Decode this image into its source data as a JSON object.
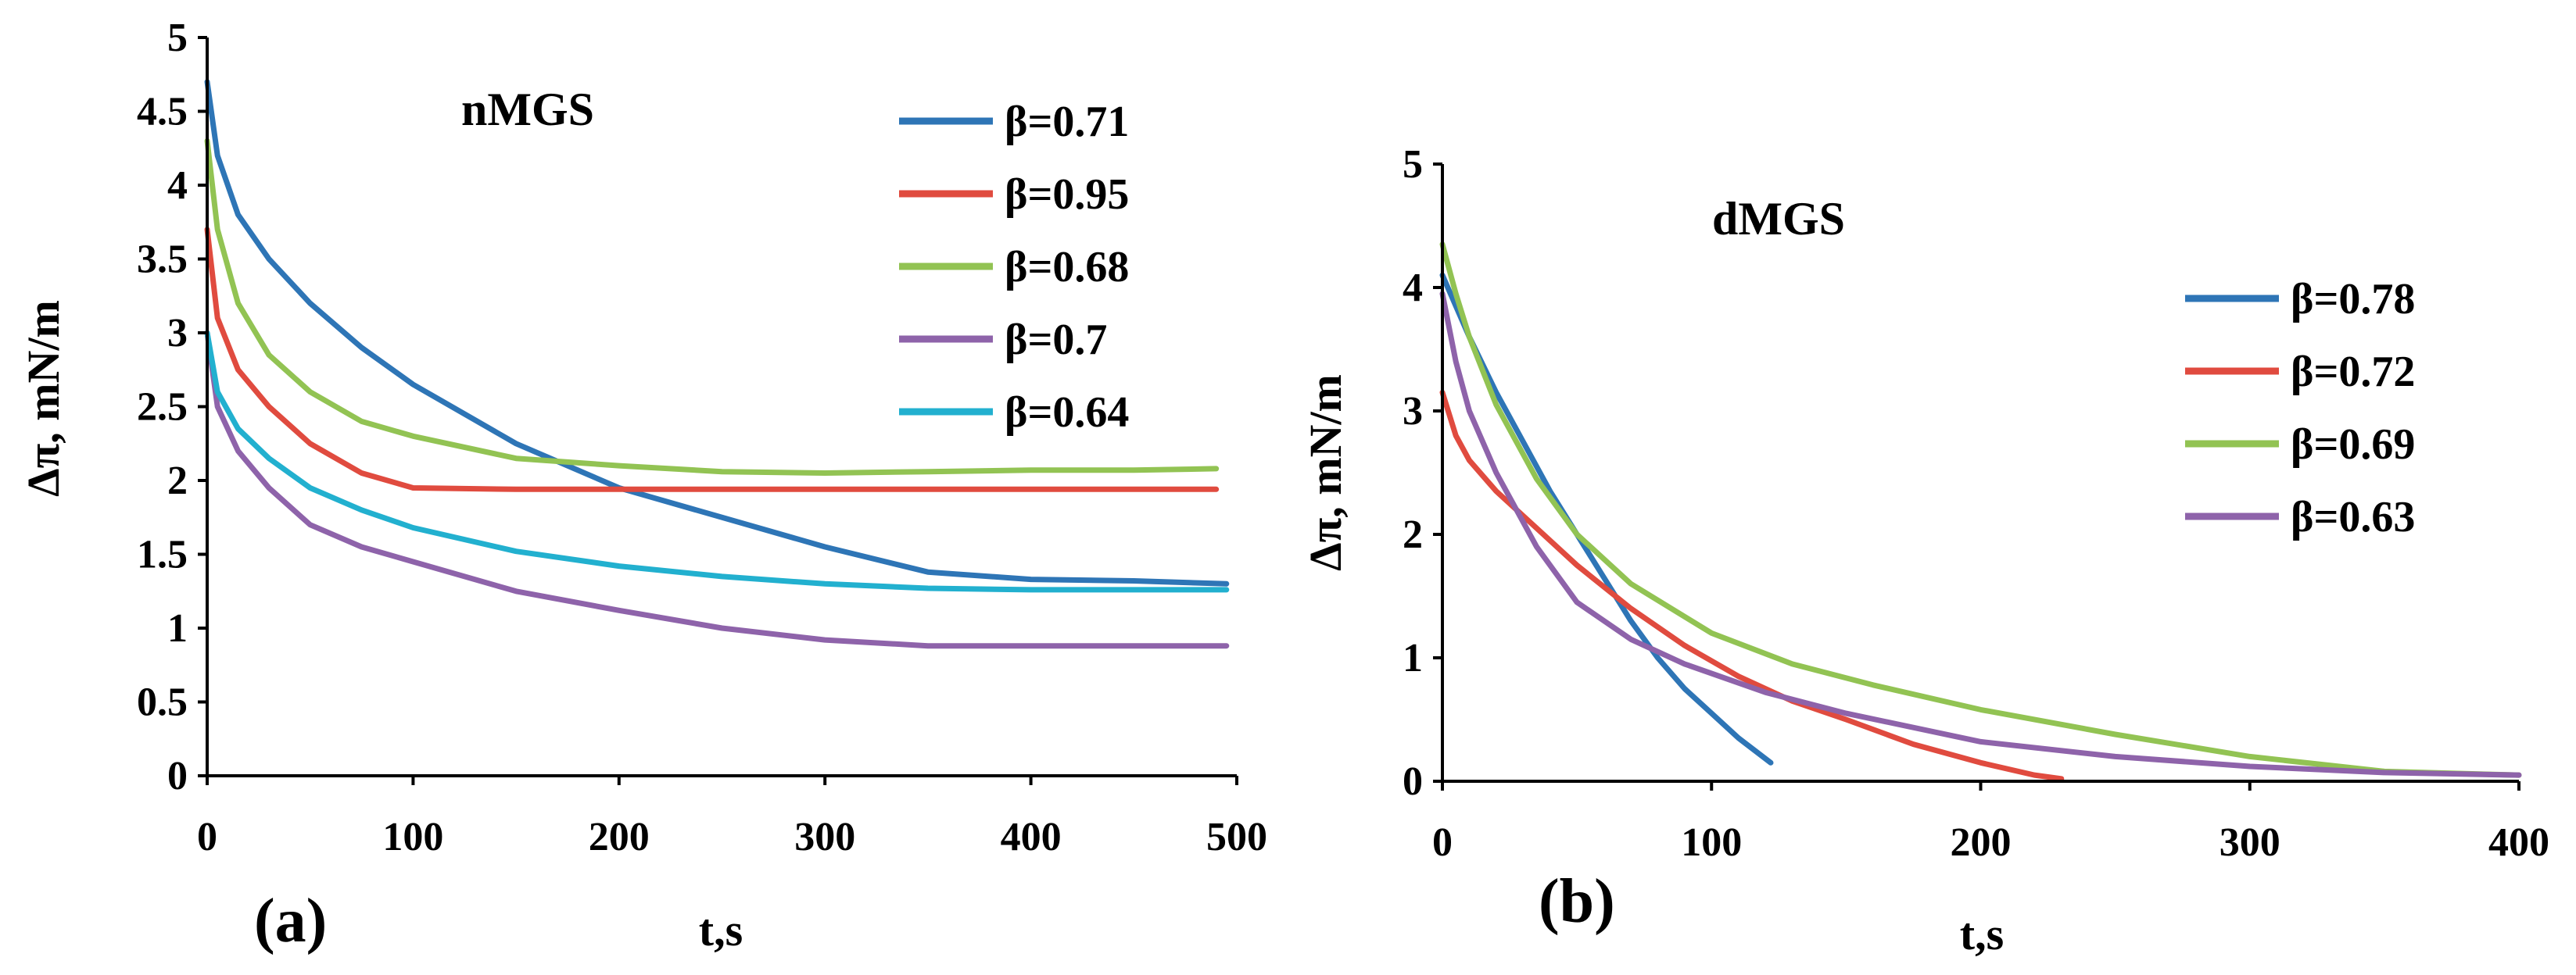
{
  "chart_data": [
    {
      "type": "line",
      "panel_label": "(a)",
      "title": "nMGS",
      "xlabel": "t,s",
      "ylabel": "Δπ, mN/m",
      "xlim": [
        0,
        500
      ],
      "ylim": [
        0,
        5
      ],
      "xticks": [
        "0",
        "100",
        "200",
        "300",
        "400",
        "500"
      ],
      "yticks": [
        "0",
        "0.5",
        "1",
        "1.5",
        "2",
        "2.5",
        "3",
        "3.5",
        "4",
        "4.5",
        "5"
      ],
      "grid": false,
      "legend": "top-right",
      "series": [
        {
          "name": "β=0.71",
          "color": "#2E75B6",
          "x": [
            0,
            5,
            15,
            30,
            50,
            75,
            100,
            150,
            200,
            250,
            300,
            350,
            400,
            450,
            495
          ],
          "y": [
            4.7,
            4.2,
            3.8,
            3.5,
            3.2,
            2.9,
            2.65,
            2.25,
            1.95,
            1.75,
            1.55,
            1.38,
            1.33,
            1.32,
            1.3
          ]
        },
        {
          "name": "β=0.95",
          "color": "#E04B3F",
          "x": [
            0,
            5,
            15,
            30,
            50,
            75,
            100,
            150,
            200,
            250,
            300,
            350,
            400,
            450,
            490
          ],
          "y": [
            3.7,
            3.1,
            2.75,
            2.5,
            2.25,
            2.05,
            1.95,
            1.94,
            1.94,
            1.94,
            1.94,
            1.94,
            1.94,
            1.94,
            1.94
          ]
        },
        {
          "name": "β=0.68",
          "color": "#92C353",
          "x": [
            0,
            5,
            15,
            30,
            50,
            75,
            100,
            150,
            200,
            250,
            300,
            350,
            400,
            450,
            490
          ],
          "y": [
            4.3,
            3.7,
            3.2,
            2.85,
            2.6,
            2.4,
            2.3,
            2.15,
            2.1,
            2.06,
            2.05,
            2.06,
            2.07,
            2.07,
            2.08
          ]
        },
        {
          "name": "β=0.7",
          "color": "#8E63AA",
          "x": [
            0,
            5,
            15,
            30,
            50,
            75,
            100,
            150,
            200,
            250,
            300,
            350,
            400,
            450,
            495
          ],
          "y": [
            3.0,
            2.5,
            2.2,
            1.95,
            1.7,
            1.55,
            1.45,
            1.25,
            1.12,
            1.0,
            0.92,
            0.88,
            0.88,
            0.88,
            0.88
          ]
        },
        {
          "name": "β=0.64",
          "color": "#22B0CF",
          "x": [
            0,
            5,
            15,
            30,
            50,
            75,
            100,
            150,
            200,
            250,
            300,
            350,
            400,
            450,
            495
          ],
          "y": [
            3.0,
            2.6,
            2.35,
            2.15,
            1.95,
            1.8,
            1.68,
            1.52,
            1.42,
            1.35,
            1.3,
            1.27,
            1.26,
            1.26,
            1.26
          ]
        }
      ]
    },
    {
      "type": "line",
      "panel_label": "(b)",
      "title": "dMGS",
      "xlabel": "t,s",
      "ylabel": "Δπ, mN/m",
      "xlim": [
        0,
        400
      ],
      "ylim": [
        0,
        5
      ],
      "xticks": [
        "0",
        "100",
        "200",
        "300",
        "400"
      ],
      "yticks": [
        "0",
        "1",
        "2",
        "3",
        "4",
        "5"
      ],
      "grid": false,
      "legend": "right",
      "series": [
        {
          "name": "β=0.78",
          "color": "#2E75B6",
          "x": [
            0,
            5,
            10,
            20,
            30,
            40,
            50,
            60,
            70,
            80,
            90,
            100,
            110,
            122
          ],
          "y": [
            4.1,
            3.85,
            3.6,
            3.15,
            2.75,
            2.35,
            2.0,
            1.65,
            1.3,
            1.0,
            0.75,
            0.55,
            0.35,
            0.15
          ]
        },
        {
          "name": "β=0.72",
          "color": "#E04B3F",
          "x": [
            0,
            5,
            10,
            20,
            35,
            50,
            70,
            90,
            110,
            130,
            150,
            175,
            200,
            220,
            230
          ],
          "y": [
            3.15,
            2.8,
            2.6,
            2.35,
            2.05,
            1.75,
            1.4,
            1.1,
            0.85,
            0.65,
            0.5,
            0.3,
            0.15,
            0.05,
            0.02
          ]
        },
        {
          "name": "β=0.69",
          "color": "#92C353",
          "x": [
            0,
            5,
            10,
            20,
            35,
            50,
            70,
            100,
            130,
            160,
            200,
            250,
            300,
            350,
            400
          ],
          "y": [
            4.35,
            3.95,
            3.6,
            3.05,
            2.45,
            2.0,
            1.6,
            1.2,
            0.95,
            0.78,
            0.58,
            0.38,
            0.2,
            0.08,
            0.05
          ]
        },
        {
          "name": "β=0.63",
          "color": "#8E63AA",
          "x": [
            0,
            5,
            10,
            20,
            35,
            50,
            70,
            90,
            120,
            150,
            200,
            250,
            300,
            350,
            400
          ],
          "y": [
            3.95,
            3.4,
            3.0,
            2.5,
            1.9,
            1.45,
            1.15,
            0.95,
            0.72,
            0.55,
            0.32,
            0.2,
            0.12,
            0.07,
            0.05
          ]
        }
      ]
    }
  ]
}
